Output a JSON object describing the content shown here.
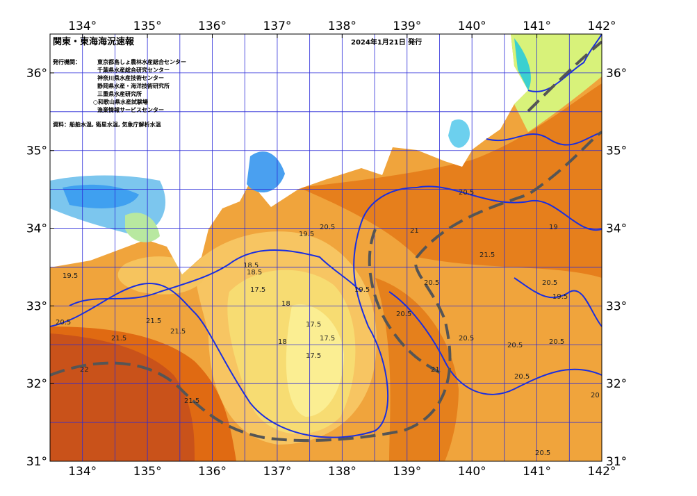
{
  "header": {
    "title": "関東・東海海況速報",
    "date": "2024年1月21日 発行",
    "issuer_label": "発行機関：",
    "issuers": [
      "東京都島しょ農林水産総合センター",
      "千葉県水産総合研究センター",
      "神奈川県水産技術センター",
      "静岡県水産・海洋技術研究所",
      "三重県水産研究所",
      "○和歌山県水産試験場",
      "漁業情報サービスセンター"
    ],
    "source": "資料：船舶水温, 衛星水温, 気象庁解析水温"
  },
  "map": {
    "lon_range": [
      133.5,
      142
    ],
    "lat_range": [
      31,
      36.5
    ],
    "lon_ticks": [
      {
        "value": 134,
        "label": "134°"
      },
      {
        "value": 135,
        "label": "135°"
      },
      {
        "value": 136,
        "label": "136°"
      },
      {
        "value": 137,
        "label": "137°"
      },
      {
        "value": 138,
        "label": "138°"
      },
      {
        "value": 139,
        "label": "139°"
      },
      {
        "value": 140,
        "label": "140°"
      },
      {
        "value": 141,
        "label": "141°"
      },
      {
        "value": 142,
        "label": "142°"
      }
    ],
    "lat_ticks": [
      {
        "value": 31,
        "label": "31°"
      },
      {
        "value": 32,
        "label": "32°"
      },
      {
        "value": 33,
        "label": "33°"
      },
      {
        "value": 34,
        "label": "34°"
      },
      {
        "value": 35,
        "label": "35°"
      },
      {
        "value": 36,
        "label": "36°"
      }
    ],
    "contour_labels": [
      "19.5",
      "20.5",
      "21.5",
      "21.5",
      "22",
      "21.5",
      "21.5",
      "18.5",
      "17.5",
      "18",
      "17.5",
      "17.5",
      "18",
      "17.5",
      "18.5",
      "19.5",
      "20.5",
      "21",
      "20.5",
      "20.5",
      "19.5",
      "20.5",
      "20.5",
      "20.5",
      "20.5",
      "20",
      "20.5",
      "20.5",
      "19",
      "19.5",
      "21.5",
      "20.5",
      "21"
    ]
  }
}
